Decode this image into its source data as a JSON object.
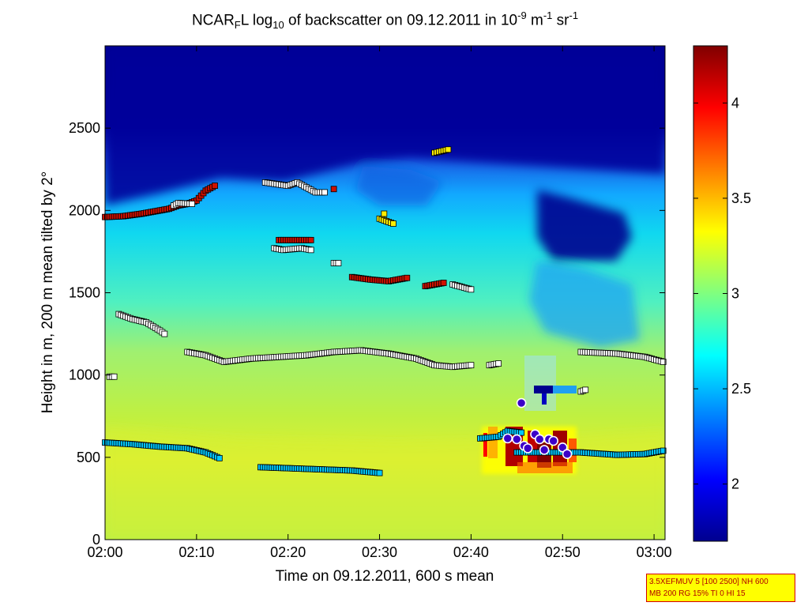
{
  "chart_data": {
    "type": "heatmap",
    "title": {
      "prefix": "NCAR",
      "sub1": "F",
      "mid1": "L log",
      "sub2": "10",
      "mid2": " of backscatter on 09.12.2011 in 10",
      "sup1": "-9",
      "mid3": " m",
      "sup2": "-1",
      "mid4": " sr",
      "sup3": "-1"
    },
    "xlabel": "Time on 09.12.2011, 600 s mean",
    "ylabel": "Height in m, 200 m mean tilted by 2°",
    "x_ticks": [
      "02:00",
      "02:10",
      "02:20",
      "02:30",
      "02:40",
      "02:50",
      "03:00"
    ],
    "x_range_min": [
      0,
      61.2
    ],
    "y_ticks": [
      0,
      500,
      1000,
      1500,
      2000,
      2500
    ],
    "y_range": [
      0,
      3000
    ],
    "colorbar": {
      "range": [
        1.7,
        4.3
      ],
      "ticks": [
        "2",
        "2.5",
        "3",
        "3.5",
        "4"
      ],
      "tick_values": [
        2,
        2.5,
        3,
        3.5,
        4
      ]
    },
    "colors": {
      "dark_blue": "#00008f",
      "cyan": "#10d0f0",
      "yellow_green": "#c0f040",
      "dark_red": "#800000"
    },
    "layers": [
      {
        "name": "layer-lower",
        "color": "#00c8ff",
        "points": [
          [
            0,
            590
          ],
          [
            3,
            580
          ],
          [
            6,
            565
          ],
          [
            9,
            555
          ],
          [
            11,
            530
          ],
          [
            12.5,
            495
          ]
        ]
      },
      {
        "name": "layer-lower-2",
        "color": "#00c8ff",
        "points": [
          [
            17,
            440
          ],
          [
            22,
            430
          ],
          [
            27,
            420
          ],
          [
            30,
            405
          ]
        ]
      },
      {
        "name": "layer-lower-3",
        "color": "#00c8ff",
        "points": [
          [
            45,
            530
          ],
          [
            49,
            530
          ],
          [
            52,
            530
          ],
          [
            56,
            515
          ],
          [
            59,
            520
          ],
          [
            61,
            540
          ]
        ]
      },
      {
        "name": "layer-lower-4",
        "color": "#00c8ff",
        "points": [
          [
            41,
            615
          ],
          [
            43,
            625
          ],
          [
            44,
            660
          ],
          [
            45.5,
            650
          ]
        ]
      },
      {
        "name": "layer-mid",
        "color": "#ffffff",
        "points": [
          [
            9,
            1140
          ],
          [
            11,
            1120
          ],
          [
            13,
            1080
          ],
          [
            16,
            1100
          ],
          [
            19,
            1110
          ],
          [
            22,
            1120
          ],
          [
            25,
            1140
          ],
          [
            28,
            1150
          ],
          [
            31,
            1130
          ],
          [
            34,
            1100
          ],
          [
            36,
            1060
          ],
          [
            38,
            1050
          ],
          [
            40,
            1060
          ]
        ]
      },
      {
        "name": "layer-mid-right",
        "color": "#ffffff",
        "points": [
          [
            52,
            1140
          ],
          [
            56,
            1130
          ],
          [
            59,
            1110
          ],
          [
            61,
            1080
          ]
        ]
      },
      {
        "name": "layer-left-decline",
        "color": "#ffffff",
        "points": [
          [
            1.5,
            1370
          ],
          [
            3,
            1340
          ],
          [
            4.5,
            1320
          ],
          [
            6,
            1270
          ],
          [
            6.5,
            1250
          ]
        ]
      },
      {
        "name": "layer-1500",
        "color": "#d01000",
        "points": [
          [
            27,
            1595
          ],
          [
            29,
            1580
          ],
          [
            31,
            1570
          ],
          [
            33,
            1590
          ]
        ]
      },
      {
        "name": "layer-1500-b",
        "color": "#d01000",
        "points": [
          [
            35,
            1540
          ],
          [
            37,
            1560
          ]
        ]
      },
      {
        "name": "layer-1500-c",
        "color": "#ffffff",
        "points": [
          [
            38,
            1550
          ],
          [
            40,
            1520
          ]
        ]
      },
      {
        "name": "layer-2000",
        "color": "#d01000",
        "points": [
          [
            0,
            1960
          ],
          [
            2,
            1965
          ],
          [
            4,
            1980
          ],
          [
            6,
            2000
          ],
          [
            7,
            2010
          ],
          [
            8,
            2030
          ],
          [
            9,
            2040
          ],
          [
            10,
            2060
          ],
          [
            11,
            2120
          ],
          [
            12,
            2150
          ]
        ]
      },
      {
        "name": "layer-2000-white",
        "color": "#ffffff",
        "points": [
          [
            7.5,
            2030
          ],
          [
            8,
            2045
          ],
          [
            9.5,
            2040
          ]
        ]
      },
      {
        "name": "layer-2150",
        "color": "#ffffff",
        "points": [
          [
            17.5,
            2170
          ],
          [
            20,
            2150
          ],
          [
            21,
            2170
          ],
          [
            23,
            2110
          ],
          [
            24,
            2110
          ]
        ]
      },
      {
        "name": "layer-2150-red",
        "color": "#d01000",
        "points": [
          [
            25,
            2130
          ]
        ]
      },
      {
        "name": "layer-1780",
        "color": "#ffffff",
        "points": [
          [
            18.5,
            1770
          ],
          [
            19.5,
            1760
          ],
          [
            21.5,
            1770
          ],
          [
            22.5,
            1760
          ]
        ]
      },
      {
        "name": "layer-1780-red",
        "color": "#d01000",
        "points": [
          [
            19,
            1820
          ],
          [
            22.5,
            1820
          ]
        ]
      },
      {
        "name": "layer-1680",
        "color": "#ffffff",
        "points": [
          [
            25,
            1680
          ],
          [
            25.5,
            1680
          ]
        ]
      },
      {
        "name": "layer-1950",
        "color": "#ffee00",
        "points": [
          [
            30,
            1950
          ],
          [
            31.5,
            1920
          ],
          [
            30.5,
            1980
          ]
        ]
      },
      {
        "name": "layer-2350",
        "color": "#ffee00",
        "points": [
          [
            36,
            2350
          ],
          [
            37.5,
            2370
          ]
        ]
      },
      {
        "name": "layer-1000-left",
        "color": "#ffffff",
        "points": [
          [
            0.5,
            990
          ],
          [
            1,
            990
          ]
        ]
      },
      {
        "name": "layer-1060",
        "color": "#ffffff",
        "points": [
          [
            42,
            1060
          ],
          [
            43,
            1070
          ]
        ]
      },
      {
        "name": "layer-900",
        "color": "#ffffff",
        "points": [
          [
            52,
            900
          ],
          [
            52.5,
            910
          ]
        ]
      }
    ],
    "circles": {
      "color": "#3c00c8",
      "points": [
        [
          45.5,
          830
        ],
        [
          44,
          615
        ],
        [
          45,
          610
        ],
        [
          45.8,
          570
        ],
        [
          46.2,
          555
        ],
        [
          47,
          640
        ],
        [
          47.5,
          610
        ],
        [
          48,
          545
        ],
        [
          48.5,
          610
        ],
        [
          49,
          600
        ],
        [
          50,
          560
        ],
        [
          50.5,
          520
        ]
      ]
    }
  },
  "info_box": {
    "line1": "3.5XEFMUV 5 [100 2500] NH 600",
    "line2": "MB 200 RG 15% TI 0 HI 15"
  }
}
